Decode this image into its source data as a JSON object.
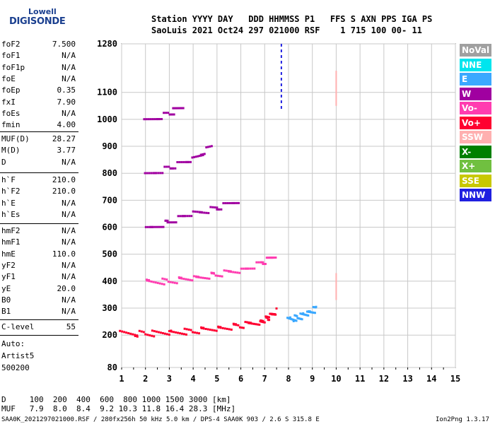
{
  "logo": {
    "top": "Lowell",
    "bottom": "DIGISONDE"
  },
  "header": {
    "line1": "Station YYYY DAY   DDD HHMMSS P1   FFS S AXN PPS IGA PS",
    "line2": "SaoLuis 2021 Oct24 297 021000 RSF    1 715 100 00- 11"
  },
  "params_group1": [
    {
      "k": "foF2",
      "v": "7.500"
    },
    {
      "k": "foF1",
      "v": "N/A"
    },
    {
      "k": "foF1p",
      "v": "N/A"
    },
    {
      "k": "foE",
      "v": "N/A"
    },
    {
      "k": "foEp",
      "v": "0.35"
    },
    {
      "k": "fxI",
      "v": "7.90"
    },
    {
      "k": "foEs",
      "v": "N/A"
    },
    {
      "k": "fmin",
      "v": "4.00"
    }
  ],
  "params_group2": [
    {
      "k": "MUF(D)",
      "v": "28.27"
    },
    {
      "k": "M(D)",
      "v": "3.77"
    },
    {
      "k": "D",
      "v": "N/A"
    }
  ],
  "params_group3": [
    {
      "k": "h`F",
      "v": "210.0"
    },
    {
      "k": "h`F2",
      "v": "210.0"
    },
    {
      "k": "h`E",
      "v": "N/A"
    },
    {
      "k": "h`Es",
      "v": "N/A"
    }
  ],
  "params_group4": [
    {
      "k": "hmF2",
      "v": "N/A"
    },
    {
      "k": "hmF1",
      "v": "N/A"
    },
    {
      "k": "hmE",
      "v": "110.0"
    },
    {
      "k": "yF2",
      "v": "N/A"
    },
    {
      "k": "yF1",
      "v": "N/A"
    },
    {
      "k": "yE",
      "v": "20.0"
    },
    {
      "k": "B0",
      "v": "N/A"
    },
    {
      "k": "B1",
      "v": "N/A"
    }
  ],
  "params_group5": [
    {
      "k": "C-level",
      "v": "55"
    }
  ],
  "autoscaling": {
    "line1": "Auto:",
    "line2": "Artist5",
    "line3": "500200"
  },
  "legend": [
    {
      "name": "NoVal",
      "color": "#a0a0a0"
    },
    {
      "name": "NNE",
      "color": "#00e5ee"
    },
    {
      "name": "E",
      "color": "#3aa8ff"
    },
    {
      "name": "W",
      "color": "#a000a0"
    },
    {
      "name": "Vo-",
      "color": "#ff3cb0"
    },
    {
      "name": "Vo+",
      "color": "#ff0030"
    },
    {
      "name": "SSW",
      "color": "#ffb0b0"
    },
    {
      "name": "X-",
      "color": "#008000"
    },
    {
      "name": "X+",
      "color": "#70c040"
    },
    {
      "name": "SSE",
      "color": "#c8c800"
    },
    {
      "name": "NNW",
      "color": "#2020e0"
    }
  ],
  "bottom": {
    "d_row": "D     100  200  400  600  800 1000 1500 3000 [km]",
    "muf_row": "MUF   7.9  8.0  8.4  9.2 10.3 11.8 16.4 28.3 [MHz]"
  },
  "footer": {
    "left": "SAA0K_2021297021000.RSF / 280fx256h 50 kHz 5.0 km / DPS-4 SAA0K 903 / 2.6 S 315.8 E",
    "right": "Ion2Png 1.3.17"
  },
  "chart_data": {
    "type": "scatter",
    "xlabel": "",
    "ylabel": "",
    "xlim": [
      1,
      15
    ],
    "ylim": [
      80,
      1280
    ],
    "xticks": [
      1,
      2,
      3,
      4,
      5,
      6,
      7,
      8,
      9,
      10,
      11,
      12,
      13,
      14,
      15
    ],
    "yticks": [
      80,
      200,
      300,
      400,
      500,
      600,
      700,
      800,
      900,
      1000,
      1100,
      1280
    ],
    "grid": true,
    "legend_position": "right",
    "traces": [
      {
        "name": "F trace (Vo+)",
        "color": "#ff0030",
        "points": [
          [
            1.0,
            205
          ],
          [
            2.0,
            205
          ],
          [
            3.0,
            208
          ],
          [
            4.0,
            215
          ],
          [
            5.0,
            225
          ],
          [
            6.0,
            235
          ],
          [
            6.8,
            250
          ],
          [
            7.2,
            265
          ],
          [
            7.5,
            290
          ]
        ]
      },
      {
        "name": "2F multihop",
        "color": "#ff3cb0",
        "points": [
          [
            2.0,
            395
          ],
          [
            3.0,
            400
          ],
          [
            4.0,
            410
          ],
          [
            5.0,
            425
          ],
          [
            6.0,
            440
          ],
          [
            7.0,
            470
          ],
          [
            7.5,
            500
          ]
        ]
      },
      {
        "name": "3F multihop",
        "color": "#a000a0",
        "points": [
          [
            2.0,
            590
          ],
          [
            3.0,
            620
          ],
          [
            4.0,
            650
          ],
          [
            5.0,
            670
          ],
          [
            6.0,
            700
          ]
        ]
      },
      {
        "name": "4F multihop",
        "color": "#a000a0",
        "points": [
          [
            2.0,
            790
          ],
          [
            3.0,
            820
          ],
          [
            4.0,
            850
          ],
          [
            4.8,
            900
          ]
        ]
      },
      {
        "name": "5F multihop",
        "color": "#a000a0",
        "points": [
          [
            2.0,
            990
          ],
          [
            3.0,
            1020
          ],
          [
            3.6,
            1050
          ]
        ]
      },
      {
        "name": "X trace (E)",
        "color": "#3aa8ff",
        "points": [
          [
            8.0,
            255
          ],
          [
            8.4,
            265
          ],
          [
            8.8,
            280
          ],
          [
            9.2,
            300
          ]
        ]
      }
    ]
  }
}
